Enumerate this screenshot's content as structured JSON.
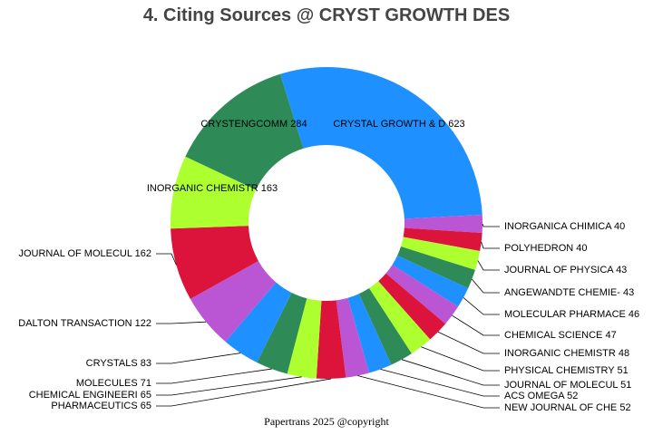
{
  "title": "4. Citing Sources @ CRYST GROWTH DES",
  "footer": "Papertrans 2025 @copyright",
  "chart_data": {
    "type": "pie",
    "style": "donut",
    "title": "4. Citing Sources @ CRYST GROWTH DES",
    "slices": [
      {
        "label": "CRYSTAL GROWTH & D",
        "value": 623,
        "color": "#1E90FF",
        "label_position": "inside"
      },
      {
        "label": "INORGANICA CHIMICA",
        "value": 40,
        "color": "#BA55D3",
        "label_position": "right"
      },
      {
        "label": "POLYHEDRON",
        "value": 40,
        "color": "#DC143C",
        "label_position": "right"
      },
      {
        "label": "JOURNAL OF PHYSICA",
        "value": 43,
        "color": "#ADFF2F",
        "label_position": "right"
      },
      {
        "label": "ANGEWANDTE CHEMIE-",
        "value": 43,
        "color": "#2E8B57",
        "label_position": "right"
      },
      {
        "label": "MOLECULAR PHARMACE",
        "value": 46,
        "color": "#1E90FF",
        "label_position": "right"
      },
      {
        "label": "CHEMICAL SCIENCE",
        "value": 47,
        "color": "#BA55D3",
        "label_position": "right"
      },
      {
        "label": "INORGANIC CHEMISTR",
        "value": 48,
        "color": "#DC143C",
        "label_position": "right"
      },
      {
        "label": "PHYSICAL CHEMISTRY",
        "value": 51,
        "color": "#ADFF2F",
        "label_position": "right"
      },
      {
        "label": "JOURNAL OF MOLECUL",
        "value": 51,
        "color": "#2E8B57",
        "label_position": "right"
      },
      {
        "label": "ACS OMEGA",
        "value": 52,
        "color": "#1E90FF",
        "label_position": "right"
      },
      {
        "label": "NEW JOURNAL OF CHE",
        "value": 52,
        "color": "#BA55D3",
        "label_position": "right"
      },
      {
        "label": "PHARMACEUTICS",
        "value": 65,
        "color": "#DC143C",
        "label_position": "left"
      },
      {
        "label": "CHEMICAL ENGINEERI",
        "value": 65,
        "color": "#ADFF2F",
        "label_position": "left"
      },
      {
        "label": "MOLECULES",
        "value": 71,
        "color": "#2E8B57",
        "label_position": "left"
      },
      {
        "label": "CRYSTALS",
        "value": 83,
        "color": "#1E90FF",
        "label_position": "left"
      },
      {
        "label": "DALTON TRANSACTION",
        "value": 122,
        "color": "#BA55D3",
        "label_position": "left"
      },
      {
        "label": "JOURNAL OF MOLECUL",
        "value": 162,
        "color": "#DC143C",
        "label_position": "left"
      },
      {
        "label": "INORGANIC CHEMISTR",
        "value": 163,
        "color": "#ADFF2F",
        "label_position": "inside"
      },
      {
        "label": "CRYSTENGCOMM",
        "value": 284,
        "color": "#2E8B57",
        "label_position": "inside"
      }
    ]
  }
}
